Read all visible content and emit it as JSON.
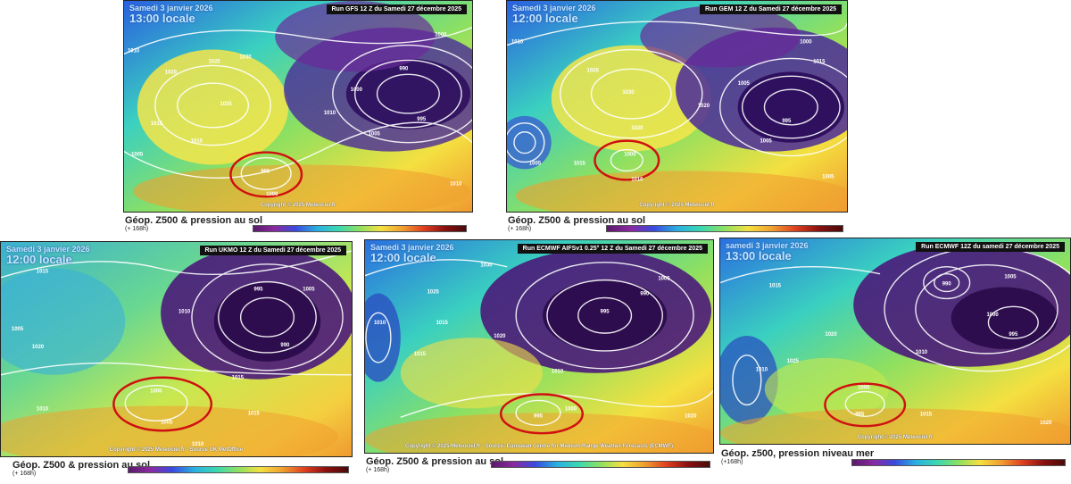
{
  "panels": [
    {
      "id": "gfs",
      "date": "Samedi 3 janvier 2026",
      "time": "13:00 locale",
      "run": "Run GFS 12 Z du Samedi 27 décembre 2025",
      "copyright": "Copyright © 2025 Meteociel.fr",
      "caption_main": "Géop. Z500 & pression au sol",
      "caption_sub": "(+ 168h)",
      "labels": [
        "1010",
        "1005",
        "1020",
        "1025",
        "1030",
        "1035",
        "1015",
        "1010",
        "995",
        "990",
        "1000",
        "1005",
        "1000",
        "995",
        "1015",
        "1010",
        "1000"
      ]
    },
    {
      "id": "gem",
      "date": "Samedi 3 janvier 2026",
      "time": "12:00 locale",
      "run": "Run GEM 12 Z du Samedi 27 décembre 2025",
      "copyright": "Copyright © 2025 Meteociel.fr",
      "caption_main": "Géop. Z500 & pression au sol",
      "caption_sub": "(+ 168h)",
      "labels": [
        "1010",
        "1005",
        "1000",
        "1030",
        "1025",
        "1020",
        "1015",
        "1005",
        "995",
        "1000",
        "1010",
        "1005",
        "1020",
        "1015",
        "1005"
      ]
    },
    {
      "id": "ukmo",
      "date": "Samedi 3 janvier 2026",
      "time": "12:00 locale",
      "run": "Run UKMO 12 Z du Samedi 27 décembre 2025",
      "copyright": "Copyright © 2025 Meteociel.fr - Source UK MetOffice",
      "caption_main": "Géop. Z500 & pression au sol",
      "caption_sub": "(+ 168h)",
      "labels": [
        "1015",
        "1020",
        "1005",
        "1010",
        "995",
        "990",
        "1005",
        "1000",
        "1015",
        "1010",
        "1005",
        "1015",
        "1010"
      ]
    },
    {
      "id": "ecmwf-aifs",
      "date": "Samedi 3 janvier 2026",
      "time": "12:00 locale",
      "run": "Run ECMWF AIFSv1 0.25° 12 Z du Samedi 27 décembre 2025",
      "copyright": "Copyright © 2025 Meteociel.fr - Source: European Centre for Medium-Range Weather Forecasts (ECMWF)",
      "caption_main": "Géop. Z500 & pression au sol",
      "caption_sub": "(+ 168h)",
      "labels": [
        "1030",
        "1025",
        "1020",
        "1015",
        "995",
        "990",
        "1005",
        "1010",
        "1015",
        "995",
        "1000",
        "1020",
        "1010"
      ]
    },
    {
      "id": "ecmwf",
      "date": "samedi 3 janvier 2026",
      "time": "13:00 locale",
      "run": "Run ECMWF 12Z du samedi 27 décembre 2025",
      "copyright": "Copyright © 2025 Meteociel.fr",
      "caption_main": "Géop. z500, pression niveau mer",
      "caption_sub": "(+168h)",
      "labels": [
        "1005",
        "1000",
        "995",
        "990",
        "1015",
        "1010",
        "1020",
        "1025",
        "1010",
        "995",
        "1000",
        "1015",
        "1020"
      ]
    }
  ],
  "colors": {
    "deep_low": "#3a0a5a",
    "low": "#7a1a8a",
    "blue": "#2a5adf",
    "cyan": "#2ac8d8",
    "green": "#5ad06a",
    "yellow": "#f2e24a",
    "orange": "#f0a030",
    "red_circle": "#d01010",
    "isobar": "#ffffff"
  }
}
